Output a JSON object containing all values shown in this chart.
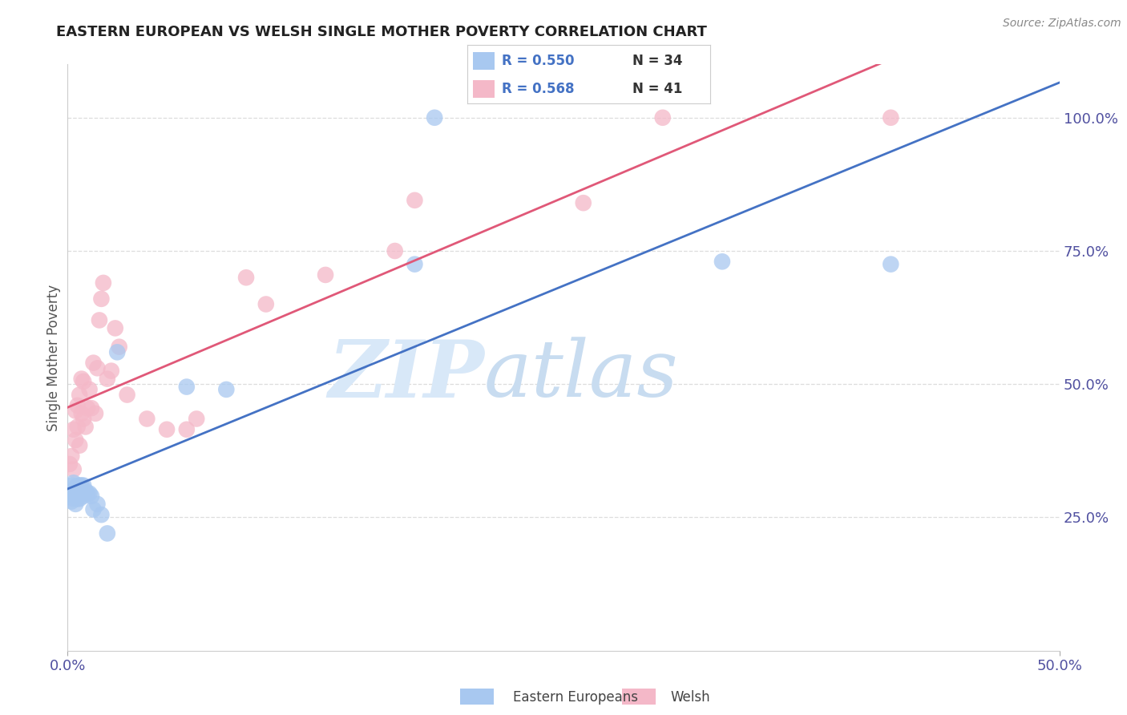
{
  "title": "EASTERN EUROPEAN VS WELSH SINGLE MOTHER POVERTY CORRELATION CHART",
  "source": "Source: ZipAtlas.com",
  "xlabel_blue": "Eastern Europeans",
  "xlabel_pink": "Welsh",
  "ylabel": "Single Mother Poverty",
  "xmin": 0.0,
  "xmax": 0.5,
  "ymin": 0.0,
  "ymax": 1.1,
  "ytick_labels_right": [
    "25.0%",
    "50.0%",
    "75.0%",
    "100.0%"
  ],
  "ytick_vals_right": [
    0.25,
    0.5,
    0.75,
    1.0
  ],
  "legend_blue_R": "R = 0.550",
  "legend_blue_N": "N = 34",
  "legend_pink_R": "R = 0.568",
  "legend_pink_N": "N = 41",
  "blue_scatter_color": "#A8C8F0",
  "pink_scatter_color": "#F4B8C8",
  "blue_line_color": "#4472C4",
  "pink_line_color": "#E05878",
  "blue_legend_color": "#A8C8F0",
  "pink_legend_color": "#F4B8C8",
  "watermark_color": "#D8E8F8",
  "background_color": "#FFFFFF",
  "grid_color": "#DDDDDD",
  "blue_x": [
    0.001,
    0.002,
    0.002,
    0.003,
    0.003,
    0.003,
    0.004,
    0.004,
    0.004,
    0.005,
    0.005,
    0.005,
    0.006,
    0.006,
    0.006,
    0.007,
    0.007,
    0.008,
    0.008,
    0.009,
    0.01,
    0.011,
    0.012,
    0.013,
    0.015,
    0.017,
    0.02,
    0.025,
    0.06,
    0.08,
    0.175,
    0.185,
    0.33,
    0.415
  ],
  "blue_y": [
    0.295,
    0.31,
    0.28,
    0.285,
    0.295,
    0.315,
    0.275,
    0.29,
    0.305,
    0.285,
    0.295,
    0.31,
    0.285,
    0.295,
    0.31,
    0.295,
    0.31,
    0.29,
    0.31,
    0.3,
    0.295,
    0.295,
    0.29,
    0.265,
    0.275,
    0.255,
    0.22,
    0.56,
    0.495,
    0.49,
    0.725,
    1.0,
    0.73,
    0.725
  ],
  "pink_x": [
    0.001,
    0.002,
    0.003,
    0.003,
    0.004,
    0.004,
    0.005,
    0.005,
    0.006,
    0.006,
    0.007,
    0.007,
    0.008,
    0.008,
    0.009,
    0.01,
    0.011,
    0.012,
    0.013,
    0.014,
    0.015,
    0.016,
    0.017,
    0.018,
    0.02,
    0.022,
    0.024,
    0.026,
    0.03,
    0.04,
    0.05,
    0.06,
    0.065,
    0.09,
    0.1,
    0.13,
    0.165,
    0.175,
    0.26,
    0.3,
    0.415
  ],
  "pink_y": [
    0.35,
    0.365,
    0.34,
    0.415,
    0.395,
    0.45,
    0.42,
    0.46,
    0.385,
    0.48,
    0.445,
    0.51,
    0.435,
    0.505,
    0.42,
    0.455,
    0.49,
    0.455,
    0.54,
    0.445,
    0.53,
    0.62,
    0.66,
    0.69,
    0.51,
    0.525,
    0.605,
    0.57,
    0.48,
    0.435,
    0.415,
    0.415,
    0.435,
    0.7,
    0.65,
    0.705,
    0.75,
    0.845,
    0.84,
    1.0,
    1.0
  ]
}
